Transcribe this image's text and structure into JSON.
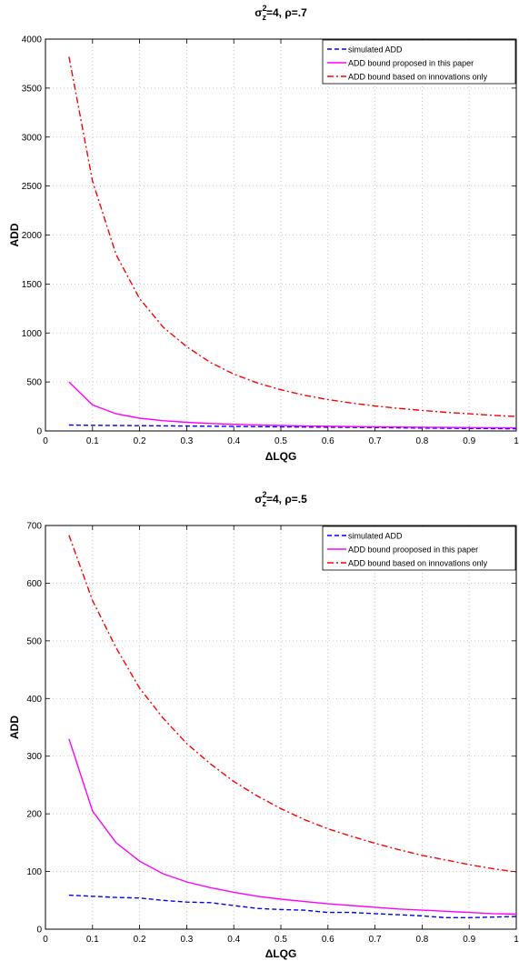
{
  "chart_data": [
    {
      "type": "line",
      "title": {
        "sigma": "σ",
        "sub": "z",
        "sup": "2",
        "rest": "=4, ρ=.7"
      },
      "xlabel": "ΔLQG",
      "ylabel": "ADD",
      "xlim": [
        0,
        1
      ],
      "ylim": [
        0,
        4000
      ],
      "xticks": [
        0,
        0.1,
        0.2,
        0.3,
        0.4,
        0.5,
        0.6,
        0.7,
        0.8,
        0.9,
        1
      ],
      "xtick_labels": [
        "0",
        "0.1",
        "0.2",
        "0.3",
        "0.4",
        "0.5",
        "0.6",
        "0.7",
        "0.8",
        "0.9",
        "1"
      ],
      "yticks": [
        0,
        500,
        1000,
        1500,
        2000,
        2500,
        3000,
        3500,
        4000
      ],
      "ytick_labels": [
        "0",
        "500",
        "1000",
        "1500",
        "2000",
        "2500",
        "3000",
        "3500",
        "4000"
      ],
      "grid": true,
      "legend_position": "top-right",
      "x": [
        0.05,
        0.1,
        0.15,
        0.2,
        0.25,
        0.3,
        0.35,
        0.4,
        0.45,
        0.5,
        0.55,
        0.6,
        0.65,
        0.7,
        0.75,
        0.8,
        0.85,
        0.9,
        0.95,
        1.0
      ],
      "series": [
        {
          "name": "simulated ADD",
          "color": "#0000ff",
          "dash": "5,3",
          "values": [
            60,
            58,
            56,
            54,
            52,
            50,
            48,
            46,
            44,
            42,
            40,
            38,
            36,
            34,
            32,
            30,
            28,
            26,
            24,
            22
          ]
        },
        {
          "name": "ADD bound proposed in this paper",
          "color": "#ff00ff",
          "dash": "",
          "values": [
            500,
            265,
            175,
            130,
            105,
            88,
            76,
            68,
            61,
            56,
            52,
            48,
            45,
            42,
            40,
            38,
            36,
            34,
            33,
            32
          ]
        },
        {
          "name": "ADD bound based on innovations only",
          "color": "#ff0000",
          "dash": "7,3,2,3",
          "values": [
            3820,
            2550,
            1800,
            1350,
            1060,
            860,
            700,
            580,
            490,
            420,
            365,
            320,
            285,
            255,
            230,
            210,
            190,
            175,
            160,
            148
          ]
        }
      ]
    },
    {
      "type": "line",
      "title": {
        "sigma": "σ",
        "sub": "z",
        "sup": "2",
        "rest": "=4, ρ=.5"
      },
      "xlabel": "ΔLQG",
      "ylabel": "ADD",
      "xlim": [
        0,
        1
      ],
      "ylim": [
        0,
        700
      ],
      "xticks": [
        0,
        0.1,
        0.2,
        0.3,
        0.4,
        0.5,
        0.6,
        0.7,
        0.8,
        0.9,
        1
      ],
      "xtick_labels": [
        "0",
        "0.1",
        "0.2",
        "0.3",
        "0.4",
        "0.5",
        "0.6",
        "0.7",
        "0.8",
        "0.9",
        "1"
      ],
      "yticks": [
        0,
        100,
        200,
        300,
        400,
        500,
        600,
        700
      ],
      "ytick_labels": [
        "0",
        "100",
        "200",
        "300",
        "400",
        "500",
        "600",
        "700"
      ],
      "grid": true,
      "legend_position": "top-right",
      "x": [
        0.05,
        0.1,
        0.15,
        0.2,
        0.25,
        0.3,
        0.35,
        0.4,
        0.45,
        0.5,
        0.55,
        0.6,
        0.65,
        0.7,
        0.75,
        0.8,
        0.85,
        0.9,
        0.95,
        1.0
      ],
      "series": [
        {
          "name": "simulated ADD",
          "color": "#0000ff",
          "dash": "5,3",
          "values": [
            59,
            57,
            55,
            54,
            50,
            47,
            46,
            41,
            36,
            34,
            33,
            29,
            29,
            27,
            25,
            23,
            20,
            20,
            21,
            22
          ]
        },
        {
          "name": "ADD bound prooposed in this paper",
          "color": "#ff00ff",
          "dash": "",
          "values": [
            330,
            205,
            150,
            118,
            96,
            82,
            72,
            64,
            57,
            52,
            48,
            44,
            41,
            38,
            35,
            33,
            31,
            29,
            27,
            26
          ]
        },
        {
          "name": "ADD bound based on innovations only",
          "color": "#ff0000",
          "dash": "7,3,2,3",
          "values": [
            683,
            570,
            488,
            418,
            366,
            322,
            287,
            256,
            231,
            209,
            190,
            174,
            161,
            149,
            138,
            128,
            120,
            112,
            105,
            99
          ]
        }
      ]
    }
  ]
}
